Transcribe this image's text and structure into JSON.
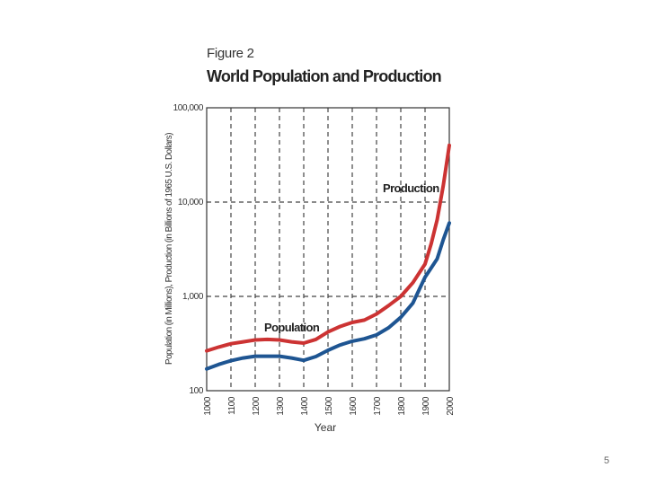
{
  "figure": {
    "kicker": "Figure 2",
    "title": "World Population and Production"
  },
  "page_number": "5",
  "colors": {
    "population": "#1e5592",
    "production": "#cc3333",
    "grid": "#444444",
    "axis": "#333333"
  },
  "chart_data": {
    "type": "line",
    "title": "World Population and Production",
    "xlabel": "Year",
    "ylabel": "Population (in Millions), Production (in Billions of 1965 U.S. Dollars)",
    "xscale": "linear",
    "yscale": "log",
    "xlim": [
      1000,
      2000
    ],
    "ylim": [
      100,
      100000
    ],
    "x_ticks": [
      1000,
      1100,
      1200,
      1300,
      1400,
      1500,
      1600,
      1700,
      1800,
      1900,
      2000
    ],
    "x_tick_labels": [
      "1000",
      "1100",
      "1200",
      "1300",
      "1400",
      "1500",
      "1600",
      "1700",
      "1800",
      "1900",
      "2000"
    ],
    "y_ticks": [
      100,
      1000,
      10000,
      100000
    ],
    "y_tick_labels": [
      "100",
      "1,000",
      "10,000",
      "100,000"
    ],
    "grid": "dashed",
    "series": [
      {
        "name": "Population",
        "label": "Population",
        "color_key": "population",
        "x": [
          1000,
          1050,
          1100,
          1150,
          1200,
          1250,
          1300,
          1350,
          1400,
          1450,
          1500,
          1550,
          1600,
          1650,
          1700,
          1750,
          1800,
          1850,
          1900,
          1925,
          1950,
          1975,
          2000
        ],
        "y": [
          170,
          190,
          208,
          222,
          232,
          232,
          232,
          222,
          210,
          230,
          268,
          305,
          335,
          355,
          390,
          465,
          600,
          850,
          1600,
          2000,
          2500,
          4000,
          6000
        ]
      },
      {
        "name": "Production",
        "label": "Production",
        "color_key": "production",
        "x": [
          1000,
          1050,
          1100,
          1150,
          1200,
          1250,
          1300,
          1350,
          1400,
          1450,
          1500,
          1550,
          1600,
          1650,
          1700,
          1750,
          1800,
          1850,
          1900,
          1925,
          1950,
          1975,
          2000
        ],
        "y": [
          265,
          290,
          315,
          330,
          345,
          350,
          345,
          330,
          320,
          350,
          420,
          480,
          530,
          560,
          650,
          800,
          1000,
          1400,
          2200,
          3600,
          6500,
          15000,
          40000
        ]
      }
    ]
  }
}
